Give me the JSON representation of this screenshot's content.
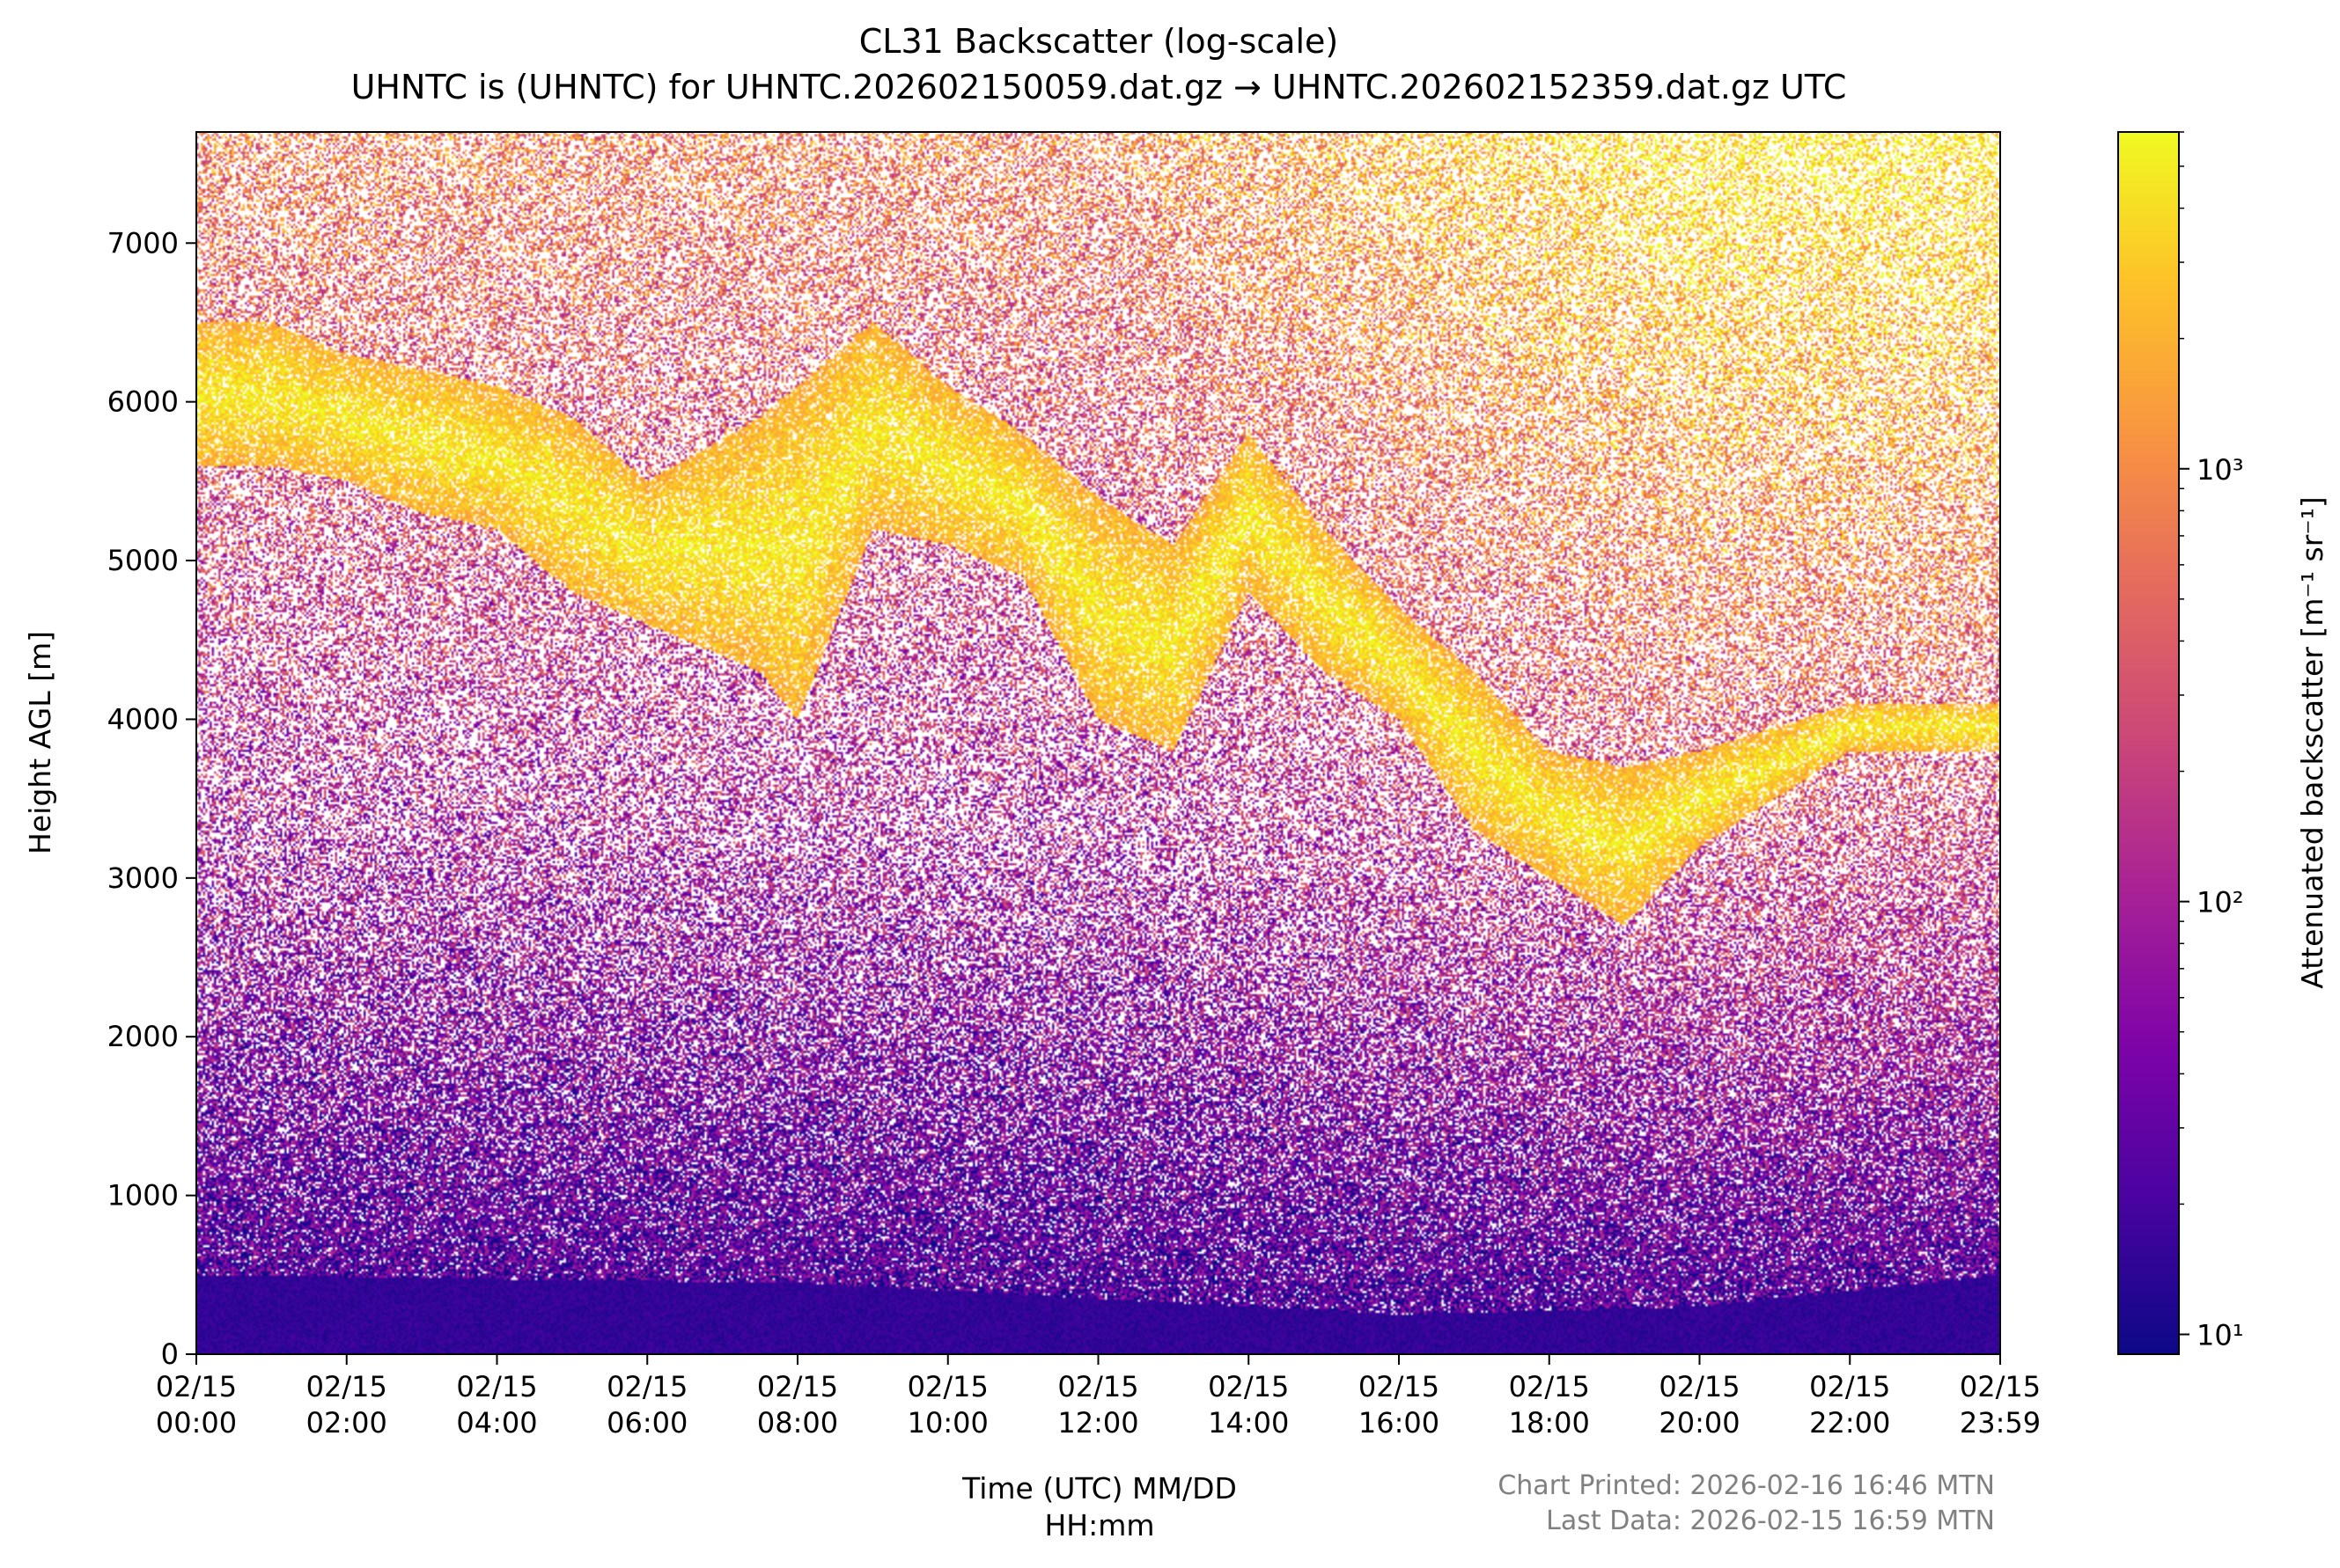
{
  "chart_data": {
    "type": "heatmap",
    "title": "CL31 Backscatter (log-scale)",
    "subtitle": "UHNTC is (UHNTC) for UHNTC.202602150059.dat.gz → UHNTC.202602152359.dat.gz UTC",
    "xlabel_line1": "Time (UTC) MM/DD",
    "xlabel_line2": "HH:mm",
    "ylabel": "Height AGL [m]",
    "colorbar_label": "Attenuated backscatter [m⁻¹ sr⁻¹]",
    "colormap": "plasma",
    "colorscale": "log",
    "colorbar_range": [
      9,
      6000
    ],
    "colorbar_ticks": [
      {
        "value": 10,
        "label": "10¹"
      },
      {
        "value": 100,
        "label": "10²"
      },
      {
        "value": 1000,
        "label": "10³"
      }
    ],
    "x_range_hours": [
      0,
      24
    ],
    "ylim": [
      0,
      7700
    ],
    "x_ticks": [
      {
        "hour": 0,
        "date": "02/15",
        "time": "00:00"
      },
      {
        "hour": 2,
        "date": "02/15",
        "time": "02:00"
      },
      {
        "hour": 4,
        "date": "02/15",
        "time": "04:00"
      },
      {
        "hour": 6,
        "date": "02/15",
        "time": "06:00"
      },
      {
        "hour": 8,
        "date": "02/15",
        "time": "08:00"
      },
      {
        "hour": 10,
        "date": "02/15",
        "time": "10:00"
      },
      {
        "hour": 12,
        "date": "02/15",
        "time": "12:00"
      },
      {
        "hour": 14,
        "date": "02/15",
        "time": "14:00"
      },
      {
        "hour": 16,
        "date": "02/15",
        "time": "16:00"
      },
      {
        "hour": 18,
        "date": "02/15",
        "time": "18:00"
      },
      {
        "hour": 20,
        "date": "02/15",
        "time": "20:00"
      },
      {
        "hour": 22,
        "date": "02/15",
        "time": "22:00"
      },
      {
        "hour": 24,
        "date": "02/15",
        "time": "23:59"
      }
    ],
    "y_ticks": [
      0,
      1000,
      2000,
      3000,
      4000,
      5000,
      6000,
      7000
    ],
    "features": {
      "surface_layer": {
        "top_m": [
          500,
          450,
          250,
          300,
          500
        ],
        "at_hours": [
          0,
          8,
          16,
          20,
          24
        ],
        "backscatter": 15
      },
      "cloud_layer": {
        "hours": [
          1,
          2,
          3,
          4,
          5,
          6,
          7.5,
          8,
          9,
          10,
          11,
          12,
          13,
          14,
          15,
          16,
          17,
          18,
          19,
          20,
          22
        ],
        "base_m": [
          5600,
          5500,
          5300,
          5200,
          4800,
          4600,
          4300,
          4000,
          5200,
          5100,
          4900,
          4000,
          3800,
          4800,
          4300,
          4000,
          3300,
          3000,
          2700,
          3200,
          3800
        ],
        "top_m": [
          6500,
          6300,
          6200,
          6100,
          5900,
          5500,
          5900,
          6100,
          6500,
          6100,
          5800,
          5400,
          5100,
          5800,
          5200,
          4700,
          4300,
          3800,
          3700,
          3800,
          4100
        ],
        "backscatter": 2000
      }
    }
  },
  "footer": {
    "printed": "Chart Printed: 2026-02-16 16:46 MTN",
    "last_data": "Last Data: 2026-02-15 16:59 MTN"
  }
}
